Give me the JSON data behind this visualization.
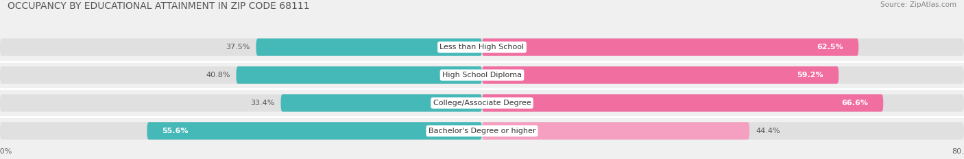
{
  "title": "OCCUPANCY BY EDUCATIONAL ATTAINMENT IN ZIP CODE 68111",
  "source": "Source: ZipAtlas.com",
  "categories": [
    "Less than High School",
    "High School Diploma",
    "College/Associate Degree",
    "Bachelor's Degree or higher"
  ],
  "owner_pct": [
    37.5,
    40.8,
    33.4,
    55.6
  ],
  "renter_pct": [
    62.5,
    59.2,
    66.6,
    44.4
  ],
  "owner_color": "#45b8b8",
  "renter_color_dark": "#f06fa0",
  "renter_color_light": "#f5a0c0",
  "xlim_left": -80.0,
  "xlim_right": 80.0,
  "background_color": "#f0f0f0",
  "bar_bg_color": "#e0e0e0",
  "bar_height": 0.62,
  "title_fontsize": 10,
  "source_fontsize": 7.5,
  "label_fontsize": 8,
  "tick_fontsize": 8,
  "pct_fontsize": 8
}
